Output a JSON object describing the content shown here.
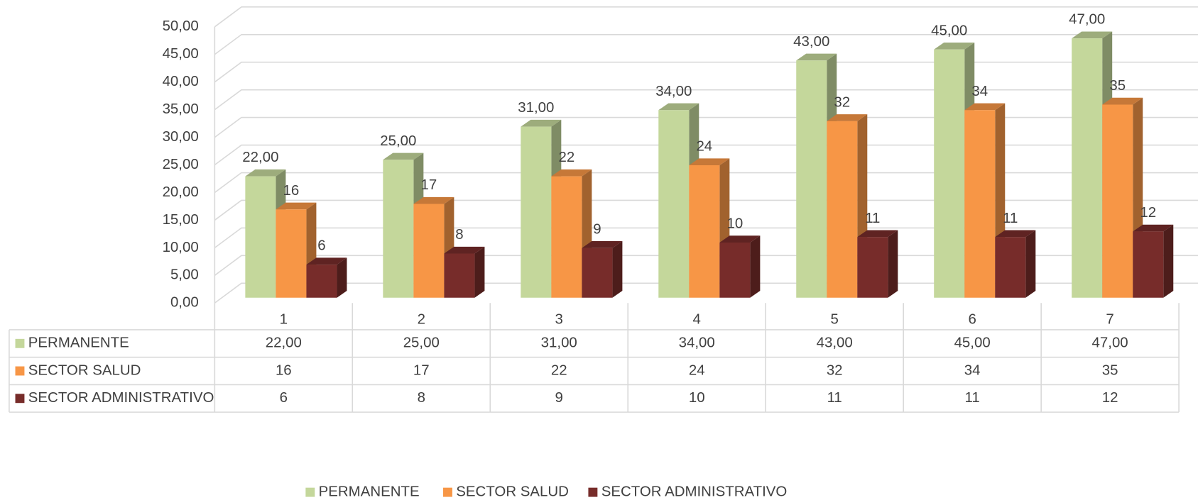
{
  "chart_data": {
    "type": "bar3d",
    "categories": [
      "1",
      "2",
      "3",
      "4",
      "5",
      "6",
      "7"
    ],
    "series": [
      {
        "name": "PERMANENTE",
        "color": "#c4d79b",
        "values": [
          22,
          25,
          31,
          34,
          43,
          45,
          47
        ],
        "value_labels": [
          "22,00",
          "25,00",
          "31,00",
          "34,00",
          "43,00",
          "45,00",
          "47,00"
        ]
      },
      {
        "name": "SECTOR SALUD",
        "color": "#f79646",
        "values": [
          16,
          17,
          22,
          24,
          32,
          34,
          35
        ]
      },
      {
        "name": "SECTOR ADMINISTRATIVO",
        "color": "#772c2a",
        "values": [
          6,
          8,
          9,
          10,
          11,
          11,
          12
        ]
      }
    ],
    "ylim": [
      0,
      50
    ],
    "yticks": [
      {
        "value": 0,
        "label": "0,00"
      },
      {
        "value": 5,
        "label": "5,00"
      },
      {
        "value": 10,
        "label": "10,00"
      },
      {
        "value": 15,
        "label": "15,00"
      },
      {
        "value": 20,
        "label": "20,00"
      },
      {
        "value": 25,
        "label": "25,00"
      },
      {
        "value": 30,
        "label": "30,00"
      },
      {
        "value": 35,
        "label": "35,00"
      },
      {
        "value": 40,
        "label": "40,00"
      },
      {
        "value": 45,
        "label": "45,00"
      },
      {
        "value": 50,
        "label": "50,00"
      }
    ],
    "grid": true,
    "legend": "bottom",
    "data_table": true
  }
}
